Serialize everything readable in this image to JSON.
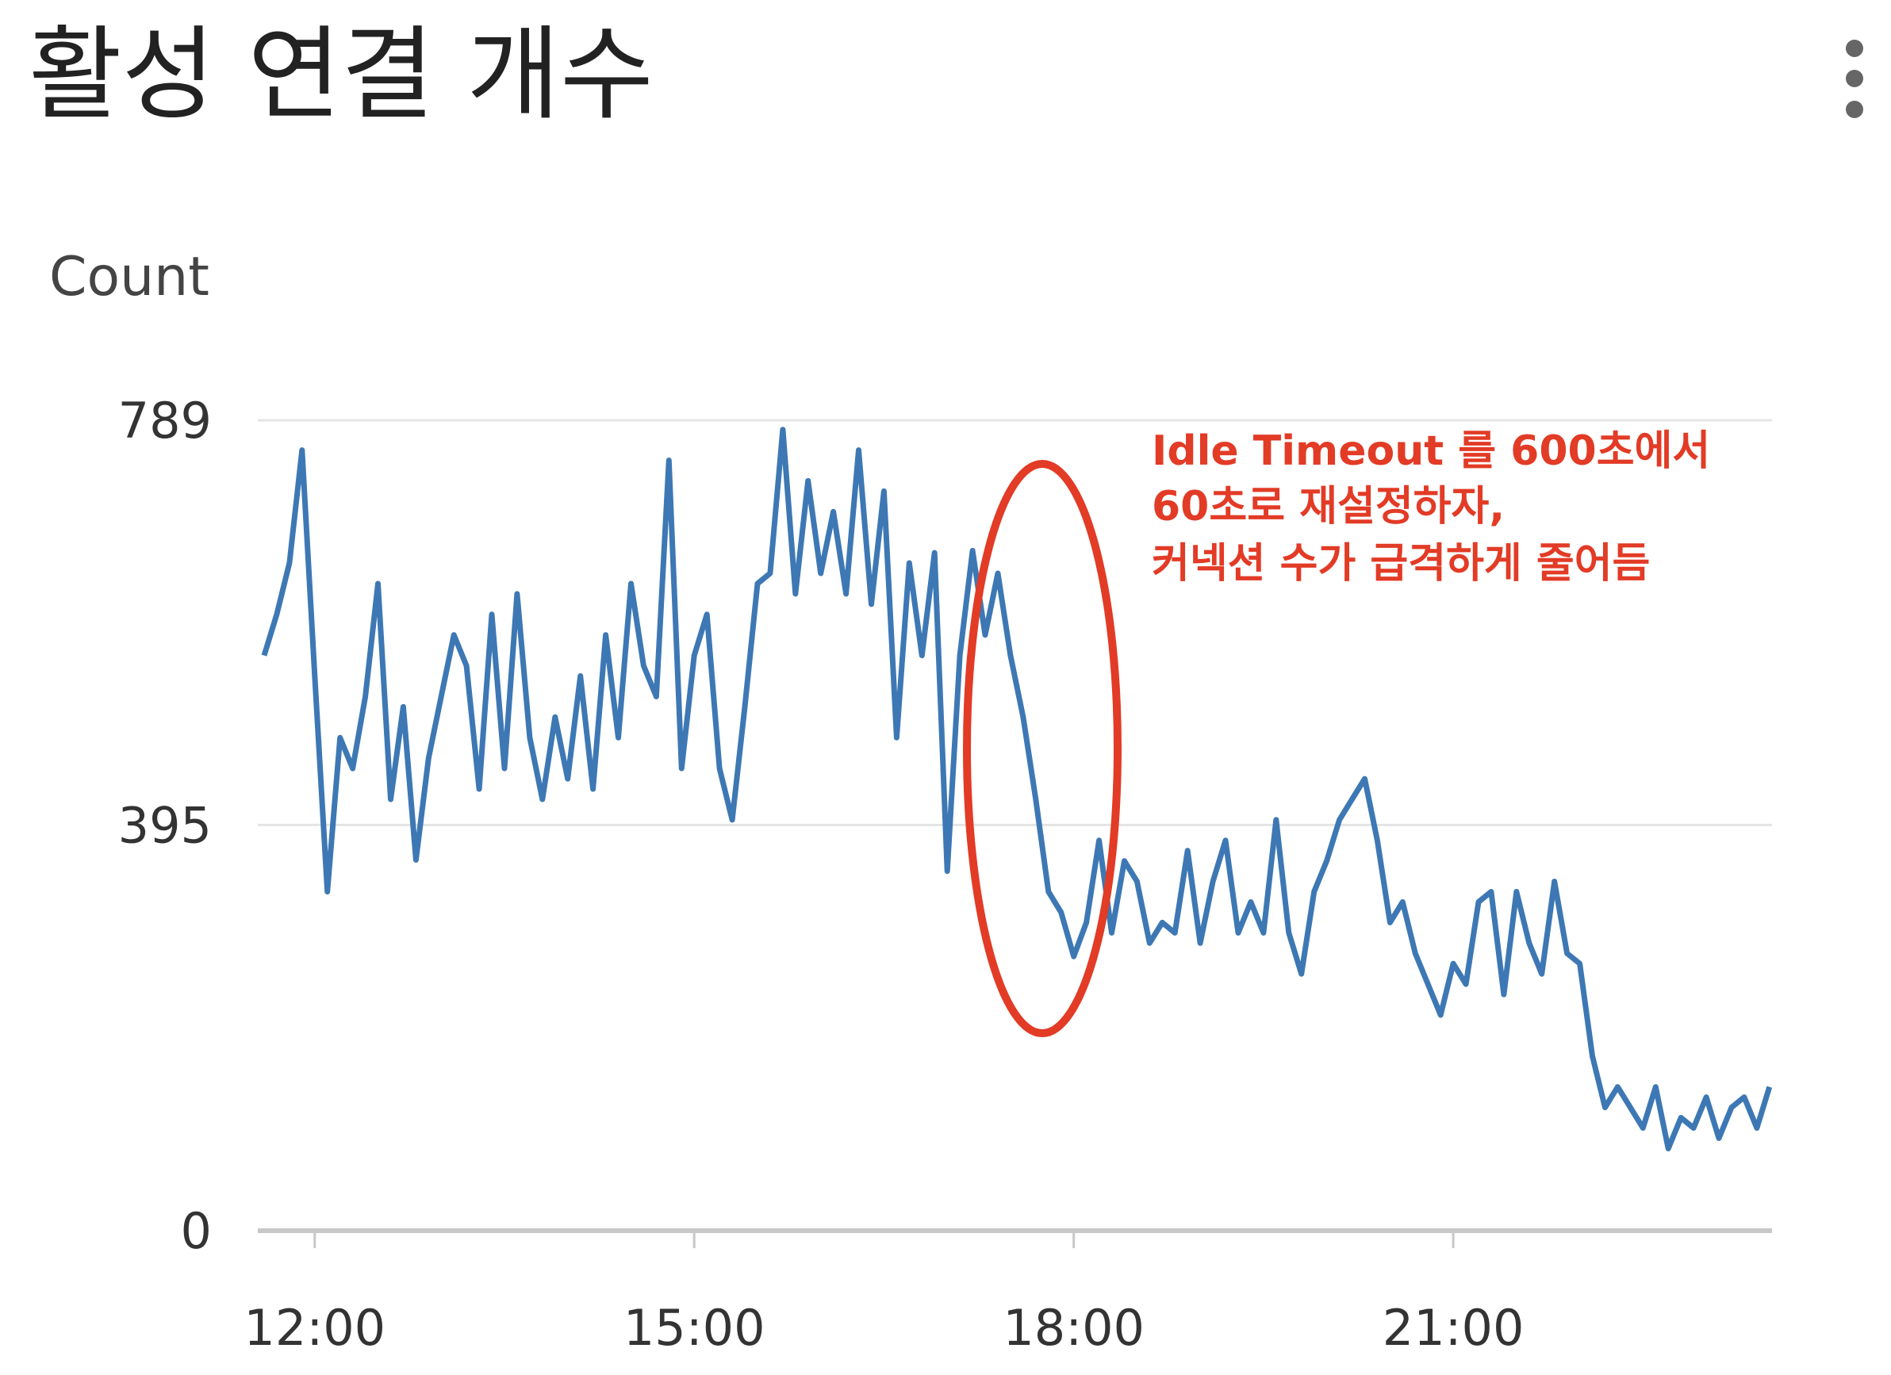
{
  "chart_data": {
    "type": "line",
    "title": "활성 연결 개수",
    "y_label": "Count",
    "annotation": [
      "Idle Timeout 를 600초에서",
      "60초로 재설정하자,",
      "커넥션 수가 급격하게 줄어듬"
    ],
    "color": "#3d78b4",
    "grid": true,
    "xlim": [
      11.55,
      23.52
    ],
    "ylim": [
      0,
      789
    ],
    "xticks": [
      {
        "value": 12,
        "label": "12:00"
      },
      {
        "value": 15,
        "label": "15:00"
      },
      {
        "value": 18,
        "label": "18:00"
      },
      {
        "value": 21,
        "label": "21:00"
      }
    ],
    "yticks": [
      0,
      395,
      789
    ],
    "x": [
      11.6,
      11.7,
      11.8,
      11.9,
      12.0,
      12.1,
      12.2,
      12.3,
      12.4,
      12.5,
      12.6,
      12.7,
      12.8,
      12.9,
      13.0,
      13.1,
      13.2,
      13.3,
      13.4,
      13.5,
      13.6,
      13.7,
      13.8,
      13.9,
      14.0,
      14.1,
      14.2,
      14.3,
      14.4,
      14.5,
      14.6,
      14.7,
      14.8,
      14.9,
      15.0,
      15.1,
      15.2,
      15.3,
      15.4,
      15.5,
      15.6,
      15.7,
      15.8,
      15.9,
      16.0,
      16.1,
      16.2,
      16.3,
      16.4,
      16.5,
      16.6,
      16.7,
      16.8,
      16.9,
      17.0,
      17.1,
      17.2,
      17.3,
      17.4,
      17.5,
      17.6,
      17.7,
      17.8,
      17.9,
      18.0,
      18.1,
      18.2,
      18.3,
      18.4,
      18.5,
      18.6,
      18.7,
      18.8,
      18.9,
      19.0,
      19.1,
      19.2,
      19.3,
      19.4,
      19.5,
      19.6,
      19.7,
      19.8,
      19.9,
      20.0,
      20.1,
      20.2,
      20.3,
      20.4,
      20.5,
      20.6,
      20.7,
      20.8,
      20.9,
      21.0,
      21.1,
      21.2,
      21.3,
      21.4,
      21.5,
      21.6,
      21.7,
      21.8,
      21.9,
      22.0,
      22.1,
      22.2,
      22.3,
      22.4,
      22.5,
      22.6,
      22.7,
      22.8,
      22.9,
      23.0,
      23.1,
      23.2,
      23.3,
      23.4,
      23.5
    ],
    "values": [
      560,
      600,
      650,
      760,
      540,
      330,
      480,
      450,
      520,
      630,
      420,
      510,
      361,
      460,
      520,
      580,
      550,
      430,
      600,
      450,
      620,
      480,
      420,
      500,
      440,
      540,
      430,
      580,
      480,
      630,
      550,
      520,
      750,
      450,
      560,
      600,
      450,
      400,
      510,
      630,
      640,
      780,
      620,
      730,
      640,
      700,
      620,
      760,
      610,
      720,
      480,
      650,
      560,
      660,
      350,
      560,
      662,
      580,
      640,
      560,
      500,
      420,
      330,
      310,
      267,
      300,
      380,
      290,
      360,
      340,
      280,
      300,
      290,
      370,
      280,
      340,
      380,
      290,
      320,
      290,
      400,
      290,
      250,
      330,
      360,
      400,
      420,
      440,
      380,
      300,
      320,
      270,
      240,
      210,
      260,
      240,
      320,
      330,
      230,
      330,
      280,
      250,
      340,
      270,
      260,
      170,
      120,
      140,
      120,
      100,
      140,
      80,
      110,
      100,
      130,
      90,
      120,
      130,
      100,
      140
    ]
  }
}
